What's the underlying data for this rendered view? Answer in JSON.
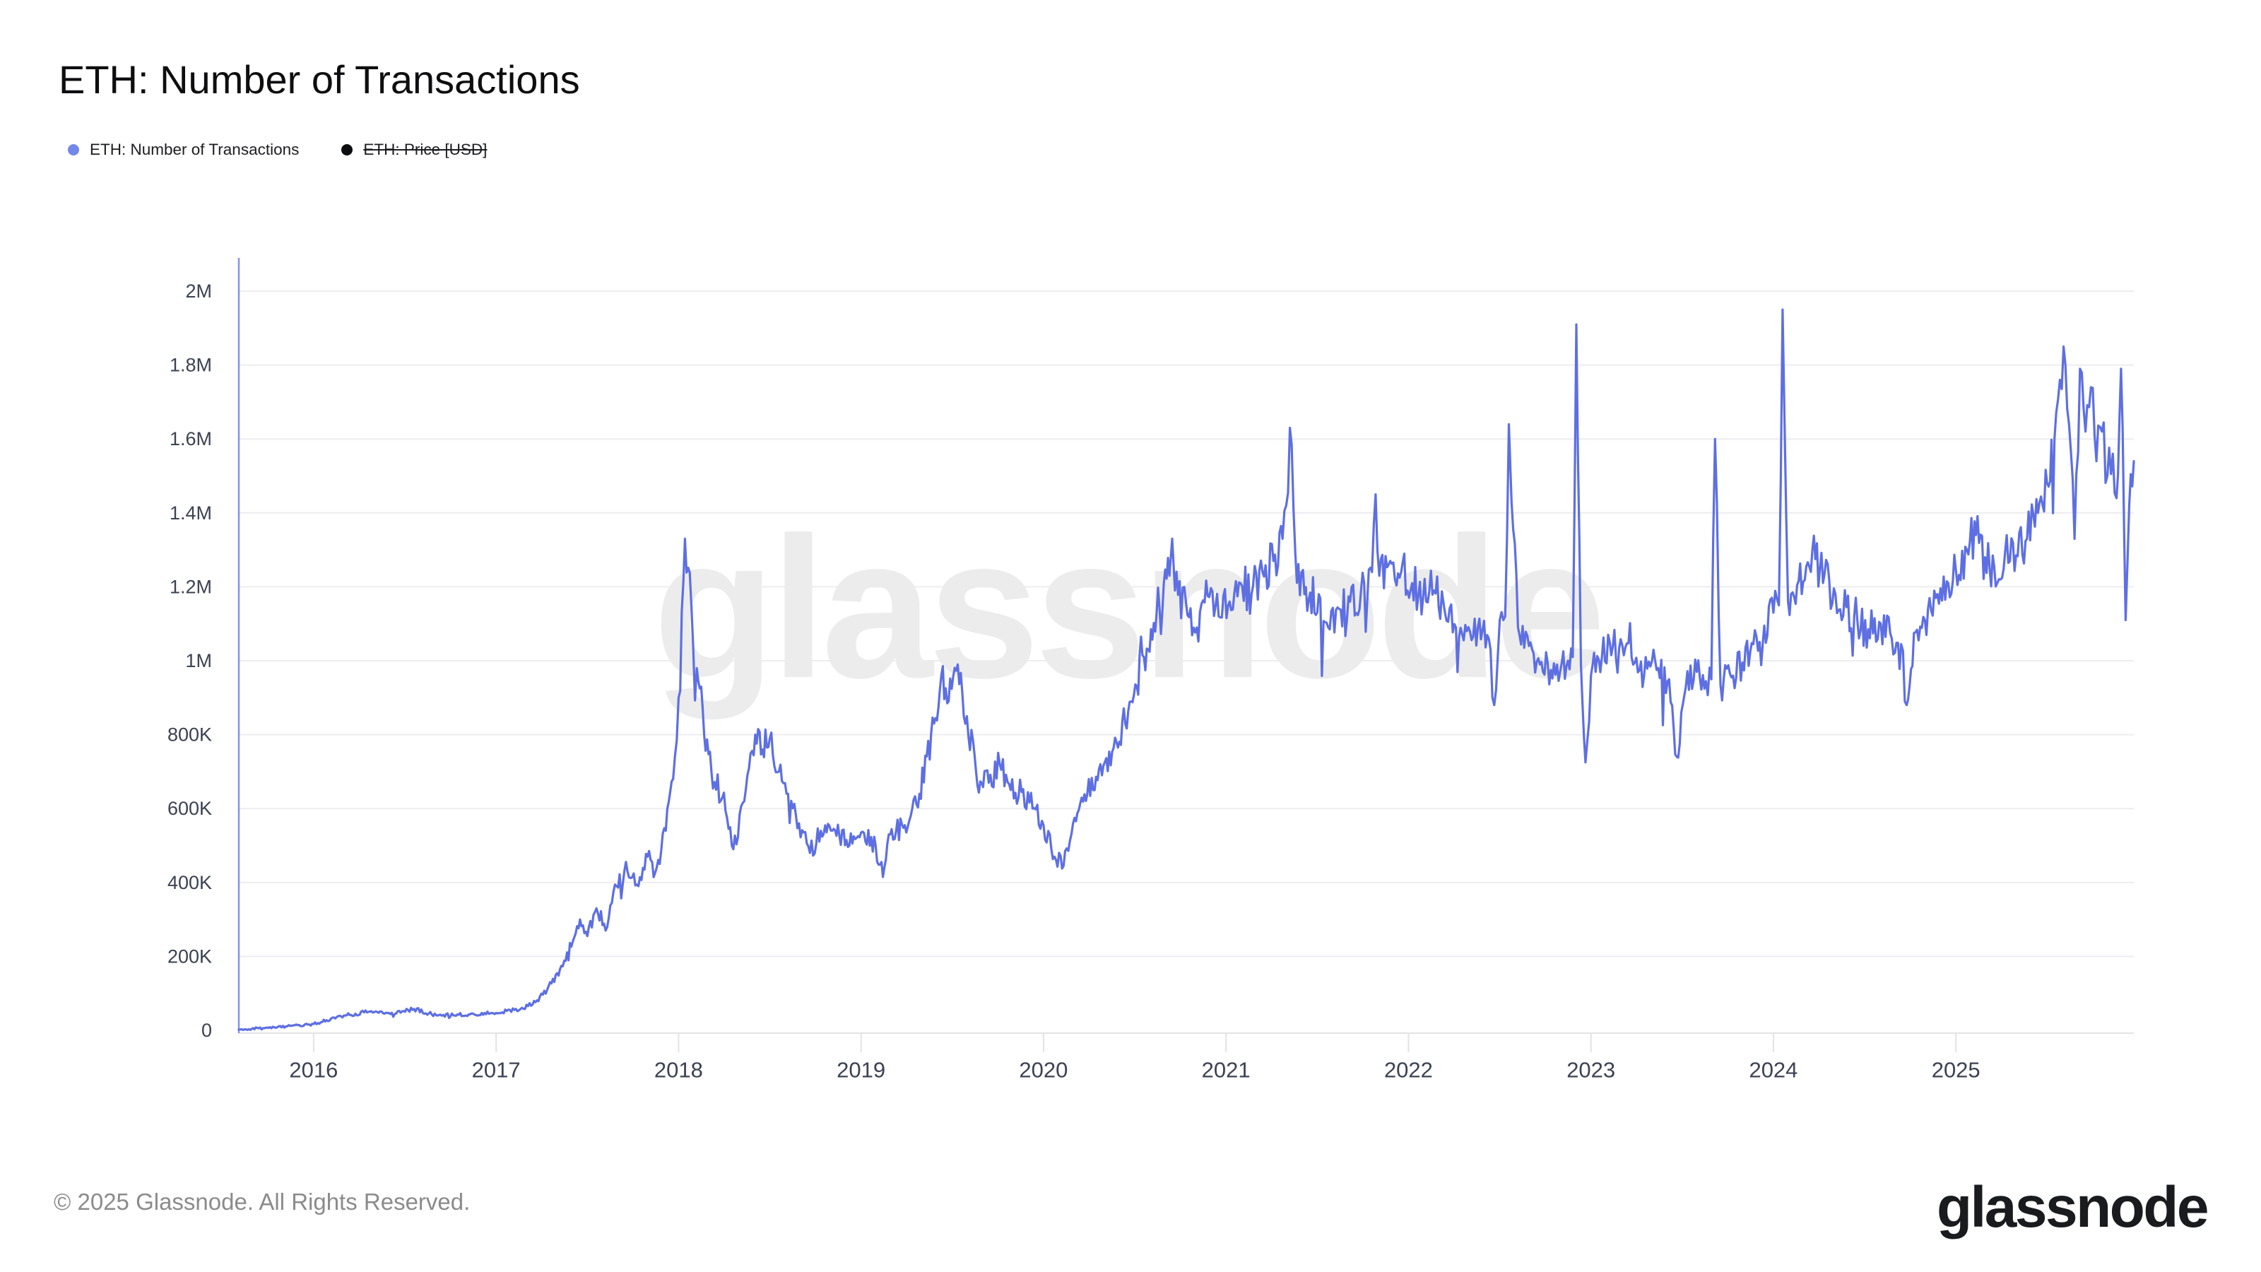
{
  "header": {
    "title": "ETH: Number of Transactions"
  },
  "legend": {
    "items": [
      {
        "label": "ETH: Number of Transactions",
        "color": "#7487ea",
        "enabled": true
      },
      {
        "label": "ETH: Price [USD]",
        "color": "#0c0d10",
        "enabled": false
      }
    ]
  },
  "watermark": {
    "text": "glassnode"
  },
  "footer": {
    "copyright": "© 2025 Glassnode. All Rights Reserved.",
    "logo_text": "glassnode"
  },
  "chart_data": {
    "type": "line",
    "title": "ETH: Number of Transactions",
    "xlabel": "",
    "ylabel": "",
    "grid": "horizontal",
    "legend_position": "top-left",
    "xlim": [
      2015.59,
      2025.975
    ],
    "ylim": [
      0,
      2000000
    ],
    "x_ticks": [
      2016,
      2017,
      2018,
      2019,
      2020,
      2021,
      2022,
      2023,
      2024,
      2025
    ],
    "y_ticks": [
      {
        "value": 0,
        "label": "0"
      },
      {
        "value": 200000,
        "label": "200K"
      },
      {
        "value": 400000,
        "label": "400K"
      },
      {
        "value": 600000,
        "label": "600K"
      },
      {
        "value": 800000,
        "label": "800K"
      },
      {
        "value": 1000000,
        "label": "1M"
      },
      {
        "value": 1200000,
        "label": "1.2M"
      },
      {
        "value": 1400000,
        "label": "1.4M"
      },
      {
        "value": 1600000,
        "label": "1.6M"
      },
      {
        "value": 1800000,
        "label": "1.8M"
      },
      {
        "value": 2000000,
        "label": "2M"
      }
    ],
    "grid_color": "#ededf0",
    "axis_line_color": "#e3e3e6",
    "tick_label_color": "#3b4252",
    "left_axis_color": "#8191ed",
    "disabled_series": [
      "ETH: Price [USD]"
    ],
    "series": [
      {
        "name": "ETH: Number of Transactions",
        "color": "#5d6fe2",
        "unit": "transactions",
        "anchors_year_valueK": [
          [
            2015.59,
            2
          ],
          [
            2015.8,
            8
          ],
          [
            2016.0,
            17
          ],
          [
            2016.15,
            38
          ],
          [
            2016.3,
            50
          ],
          [
            2016.42,
            44
          ],
          [
            2016.55,
            58
          ],
          [
            2016.68,
            40
          ],
          [
            2016.85,
            43
          ],
          [
            2017.0,
            47
          ],
          [
            2017.1,
            55
          ],
          [
            2017.2,
            70
          ],
          [
            2017.28,
            110
          ],
          [
            2017.35,
            165
          ],
          [
            2017.42,
            240
          ],
          [
            2017.46,
            300
          ],
          [
            2017.5,
            255
          ],
          [
            2017.55,
            330
          ],
          [
            2017.6,
            270
          ],
          [
            2017.66,
            390
          ],
          [
            2017.72,
            430
          ],
          [
            2017.78,
            390
          ],
          [
            2017.83,
            470
          ],
          [
            2017.88,
            440
          ],
          [
            2017.93,
            540
          ],
          [
            2017.97,
            680
          ],
          [
            2018.0,
            900
          ],
          [
            2018.035,
            1330
          ],
          [
            2018.07,
            1150
          ],
          [
            2018.1,
            980
          ],
          [
            2018.14,
            800
          ],
          [
            2018.18,
            700
          ],
          [
            2018.24,
            630
          ],
          [
            2018.3,
            490
          ],
          [
            2018.36,
            620
          ],
          [
            2018.42,
            800
          ],
          [
            2018.46,
            760
          ],
          [
            2018.5,
            790
          ],
          [
            2018.55,
            700
          ],
          [
            2018.6,
            640
          ],
          [
            2018.66,
            560
          ],
          [
            2018.72,
            480
          ],
          [
            2018.78,
            540
          ],
          [
            2018.85,
            545
          ],
          [
            2018.92,
            515
          ],
          [
            2019.0,
            535
          ],
          [
            2019.08,
            500
          ],
          [
            2019.12,
            415
          ],
          [
            2019.16,
            530
          ],
          [
            2019.24,
            555
          ],
          [
            2019.32,
            640
          ],
          [
            2019.4,
            830
          ],
          [
            2019.44,
            960
          ],
          [
            2019.48,
            890
          ],
          [
            2019.53,
            990
          ],
          [
            2019.58,
            850
          ],
          [
            2019.63,
            700
          ],
          [
            2019.7,
            670
          ],
          [
            2019.76,
            720
          ],
          [
            2019.82,
            650
          ],
          [
            2019.88,
            645
          ],
          [
            2019.94,
            600
          ],
          [
            2020.0,
            555
          ],
          [
            2020.06,
            470
          ],
          [
            2020.11,
            445
          ],
          [
            2020.17,
            575
          ],
          [
            2020.24,
            640
          ],
          [
            2020.32,
            690
          ],
          [
            2020.4,
            780
          ],
          [
            2020.48,
            890
          ],
          [
            2020.55,
            1010
          ],
          [
            2020.62,
            1130
          ],
          [
            2020.69,
            1230
          ],
          [
            2020.705,
            1330
          ],
          [
            2020.72,
            1190
          ],
          [
            2020.78,
            1160
          ],
          [
            2020.84,
            1090
          ],
          [
            2020.9,
            1175
          ],
          [
            2020.96,
            1120
          ],
          [
            2021.02,
            1160
          ],
          [
            2021.08,
            1210
          ],
          [
            2021.14,
            1180
          ],
          [
            2021.2,
            1240
          ],
          [
            2021.26,
            1270
          ],
          [
            2021.31,
            1330
          ],
          [
            2021.33,
            1420
          ],
          [
            2021.35,
            1630
          ],
          [
            2021.38,
            1290
          ],
          [
            2021.43,
            1180
          ],
          [
            2021.5,
            1130
          ],
          [
            2021.56,
            1090
          ],
          [
            2021.62,
            1140
          ],
          [
            2021.68,
            1160
          ],
          [
            2021.74,
            1190
          ],
          [
            2021.8,
            1240
          ],
          [
            2021.82,
            1450
          ],
          [
            2021.84,
            1230
          ],
          [
            2021.9,
            1270
          ],
          [
            2021.96,
            1240
          ],
          [
            2022.02,
            1210
          ],
          [
            2022.08,
            1170
          ],
          [
            2022.14,
            1190
          ],
          [
            2022.2,
            1130
          ],
          [
            2022.26,
            1090
          ],
          [
            2022.32,
            1080
          ],
          [
            2022.38,
            1090
          ],
          [
            2022.44,
            1060
          ],
          [
            2022.47,
            880
          ],
          [
            2022.5,
            1110
          ],
          [
            2022.53,
            1120
          ],
          [
            2022.55,
            1640
          ],
          [
            2022.565,
            1430
          ],
          [
            2022.6,
            1090
          ],
          [
            2022.66,
            1040
          ],
          [
            2022.72,
            990
          ],
          [
            2022.78,
            975
          ],
          [
            2022.84,
            995
          ],
          [
            2022.9,
            1010
          ],
          [
            2022.92,
            1910
          ],
          [
            2022.945,
            990
          ],
          [
            2022.97,
            725
          ],
          [
            2023.0,
            960
          ],
          [
            2023.06,
            1010
          ],
          [
            2023.12,
            1040
          ],
          [
            2023.18,
            1015
          ],
          [
            2023.24,
            995
          ],
          [
            2023.3,
            1010
          ],
          [
            2023.36,
            975
          ],
          [
            2023.42,
            945
          ],
          [
            2023.47,
            740
          ],
          [
            2023.52,
            930
          ],
          [
            2023.58,
            970
          ],
          [
            2023.63,
            945
          ],
          [
            2023.66,
            950
          ],
          [
            2023.68,
            1600
          ],
          [
            2023.71,
            935
          ],
          [
            2023.77,
            955
          ],
          [
            2023.83,
            995
          ],
          [
            2023.89,
            1045
          ],
          [
            2023.95,
            1095
          ],
          [
            2024.0,
            1130
          ],
          [
            2024.03,
            1150
          ],
          [
            2024.05,
            1950
          ],
          [
            2024.08,
            1160
          ],
          [
            2024.13,
            1205
          ],
          [
            2024.18,
            1255
          ],
          [
            2024.23,
            1275
          ],
          [
            2024.28,
            1235
          ],
          [
            2024.34,
            1180
          ],
          [
            2024.4,
            1145
          ],
          [
            2024.46,
            1110
          ],
          [
            2024.52,
            1085
          ],
          [
            2024.58,
            1105
          ],
          [
            2024.64,
            1075
          ],
          [
            2024.7,
            1045
          ],
          [
            2024.73,
            880
          ],
          [
            2024.77,
            1075
          ],
          [
            2024.83,
            1110
          ],
          [
            2024.89,
            1170
          ],
          [
            2024.95,
            1215
          ],
          [
            2025.0,
            1245
          ],
          [
            2025.06,
            1300
          ],
          [
            2025.11,
            1340
          ],
          [
            2025.16,
            1280
          ],
          [
            2025.21,
            1255
          ],
          [
            2025.27,
            1295
          ],
          [
            2025.33,
            1285
          ],
          [
            2025.39,
            1330
          ],
          [
            2025.45,
            1400
          ],
          [
            2025.5,
            1480
          ],
          [
            2025.54,
            1600
          ],
          [
            2025.57,
            1760
          ],
          [
            2025.59,
            1850
          ],
          [
            2025.62,
            1640
          ],
          [
            2025.65,
            1330
          ],
          [
            2025.68,
            1790
          ],
          [
            2025.71,
            1620
          ],
          [
            2025.74,
            1740
          ],
          [
            2025.77,
            1540
          ],
          [
            2025.8,
            1620
          ],
          [
            2025.83,
            1500
          ],
          [
            2025.86,
            1560
          ],
          [
            2025.88,
            1440
          ],
          [
            2025.905,
            1790
          ],
          [
            2025.93,
            1110
          ],
          [
            2025.95,
            1420
          ],
          [
            2025.975,
            1540
          ]
        ]
      }
    ]
  }
}
